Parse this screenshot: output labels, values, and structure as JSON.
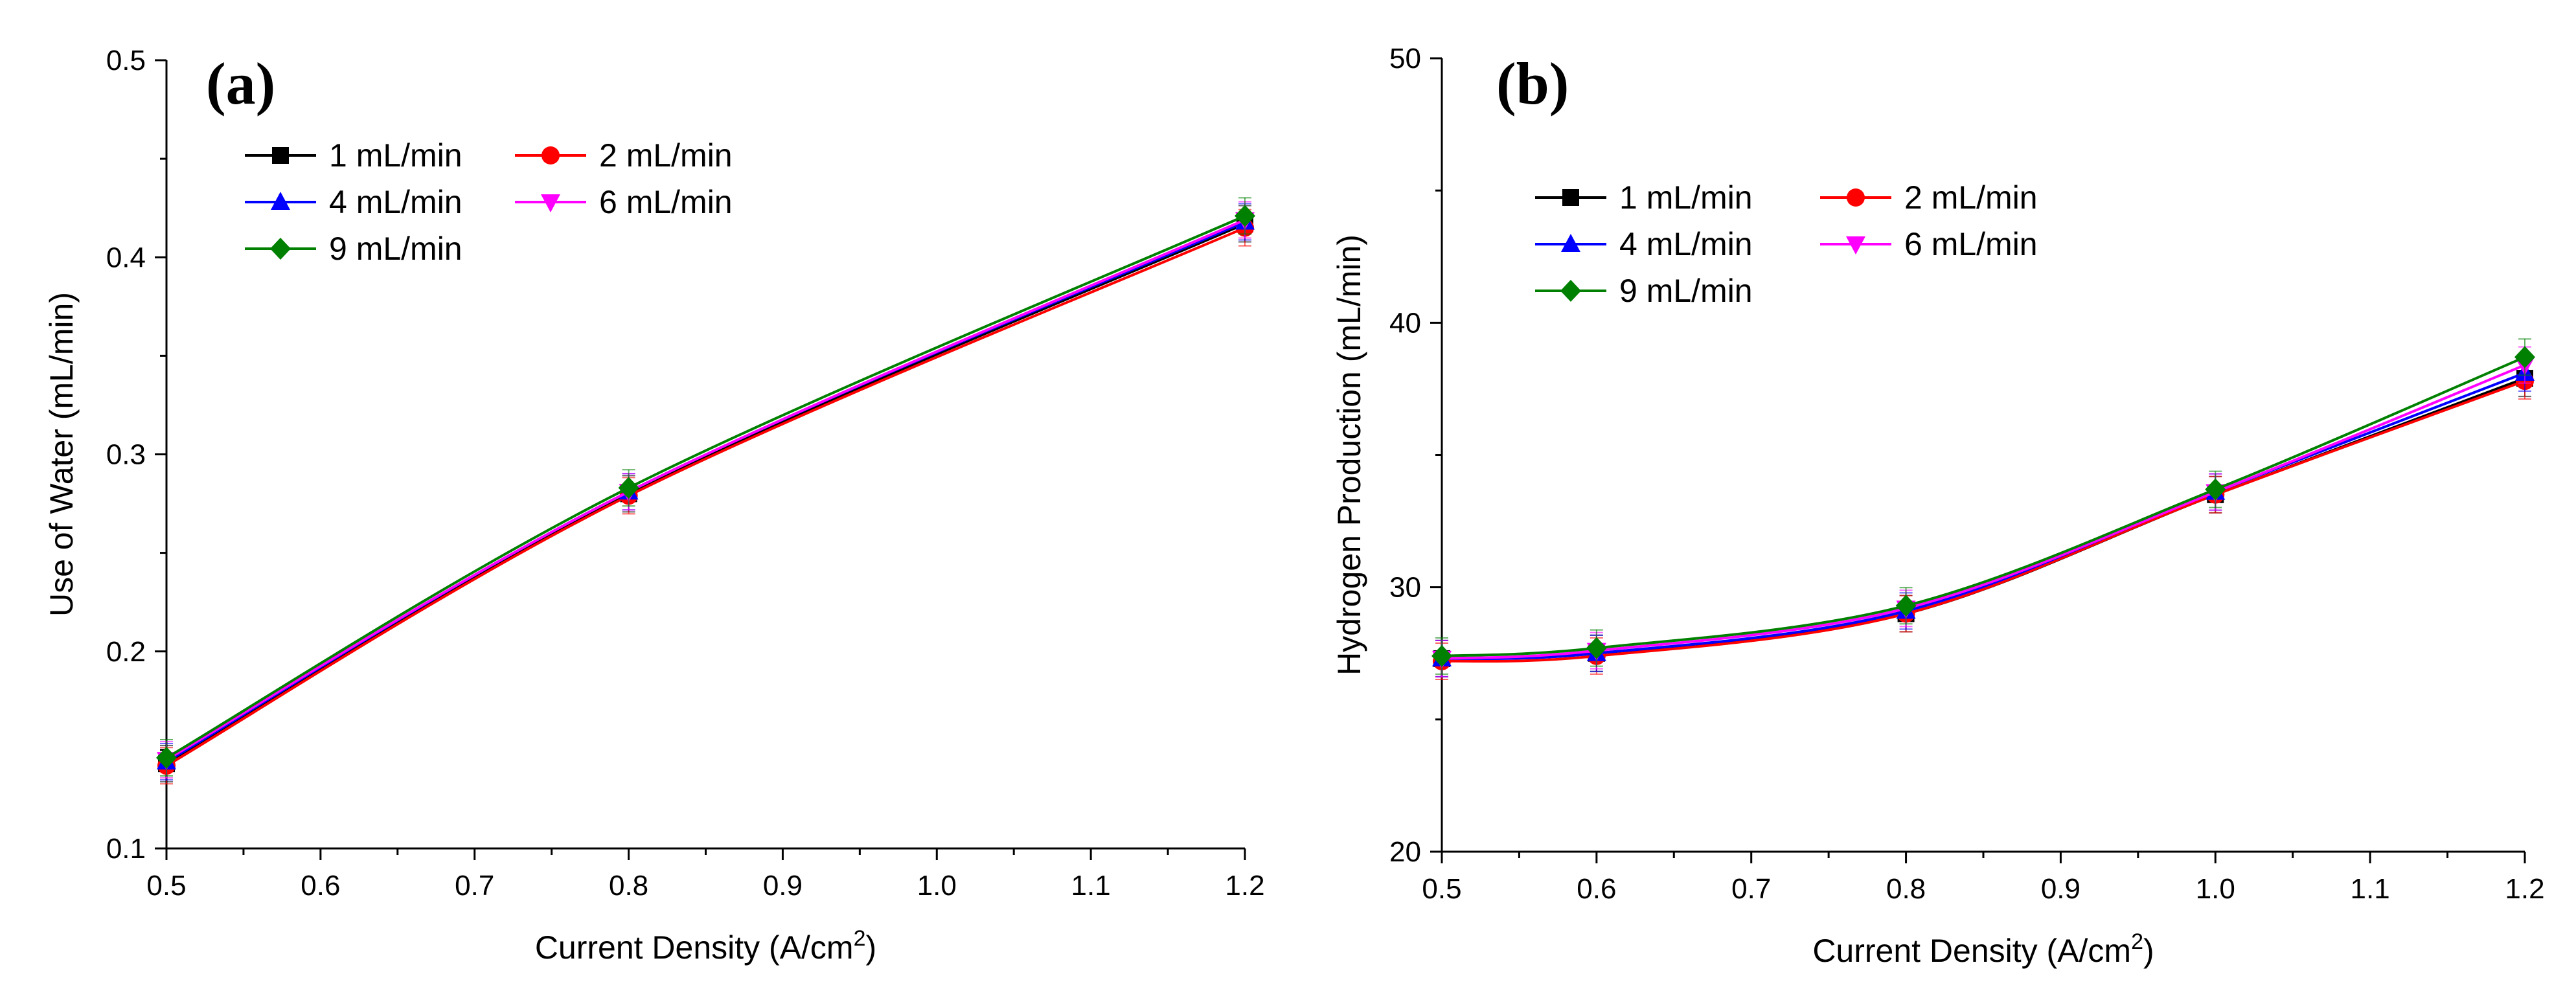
{
  "colors": {
    "1 mL/min": "#000000",
    "2 mL/min": "#ff0000",
    "4 mL/min": "#0000ff",
    "6 mL/min": "#ff00ff",
    "9 mL/min": "#008000"
  },
  "chart_data": [
    {
      "type": "line",
      "panel_label": "(a)",
      "title": "",
      "xlabel": "Current Density (A/cm",
      "xlabel_sup": "2",
      "xlabel_end": ")",
      "ylabel": "Use of Water (mL/min)",
      "xlim": [
        0.5,
        1.2
      ],
      "ylim": [
        0.1,
        0.5
      ],
      "xticks": [
        0.5,
        0.6,
        0.7,
        0.8,
        0.9,
        1.0,
        1.1,
        1.2
      ],
      "xtick_labels": [
        "0.5",
        "0.6",
        "0.7",
        "0.8",
        "0.9",
        "1.0",
        "1.1",
        "1.2"
      ],
      "yticks": [
        0.1,
        0.2,
        0.3,
        0.4,
        0.5
      ],
      "ytick_labels": [
        "0.1",
        "0.2",
        "0.3",
        "0.4",
        "0.5"
      ],
      "grid": false,
      "legend": "top-left",
      "x": [
        0.5,
        0.8,
        1.2
      ],
      "series": [
        {
          "name": "1 mL/min",
          "marker": "square",
          "values": [
            0.143,
            0.28,
            0.417
          ]
        },
        {
          "name": "2 mL/min",
          "marker": "circle",
          "values": [
            0.142,
            0.279,
            0.415
          ]
        },
        {
          "name": "4 mL/min",
          "marker": "triangle",
          "values": [
            0.144,
            0.281,
            0.418
          ]
        },
        {
          "name": "6 mL/min",
          "marker": "tri-down",
          "values": [
            0.145,
            0.281,
            0.419
          ]
        },
        {
          "name": "9 mL/min",
          "marker": "diamond",
          "values": [
            0.146,
            0.283,
            0.421
          ]
        }
      ]
    },
    {
      "type": "line",
      "panel_label": "(b)",
      "title": "",
      "xlabel": "Current Density (A/cm",
      "xlabel_sup": "2",
      "xlabel_end": ")",
      "ylabel": "Hydrogen Production (mL/min)",
      "xlim": [
        0.5,
        1.2
      ],
      "ylim": [
        20,
        50
      ],
      "xticks": [
        0.5,
        0.6,
        0.7,
        0.8,
        0.9,
        1.0,
        1.1,
        1.2
      ],
      "xtick_labels": [
        "0.5",
        "0.6",
        "0.7",
        "0.8",
        "0.9",
        "1.0",
        "1.1",
        "1.2"
      ],
      "yticks": [
        20,
        30,
        40,
        50
      ],
      "ytick_labels": [
        "20",
        "30",
        "40",
        "50"
      ],
      "grid": false,
      "legend": "top-left",
      "x": [
        0.5,
        0.6,
        0.8,
        1.0,
        1.2
      ],
      "series": [
        {
          "name": "1 mL/min",
          "marker": "square",
          "values": [
            27.3,
            27.5,
            29.0,
            33.5,
            37.9
          ]
        },
        {
          "name": "2 mL/min",
          "marker": "circle",
          "values": [
            27.2,
            27.4,
            29.0,
            33.5,
            37.8
          ]
        },
        {
          "name": "4 mL/min",
          "marker": "triangle",
          "values": [
            27.3,
            27.5,
            29.1,
            33.6,
            38.1
          ]
        },
        {
          "name": "6 mL/min",
          "marker": "tri-down",
          "values": [
            27.3,
            27.6,
            29.2,
            33.6,
            38.4
          ]
        },
        {
          "name": "9 mL/min",
          "marker": "diamond",
          "values": [
            27.4,
            27.7,
            29.3,
            33.7,
            38.7
          ]
        }
      ]
    }
  ]
}
